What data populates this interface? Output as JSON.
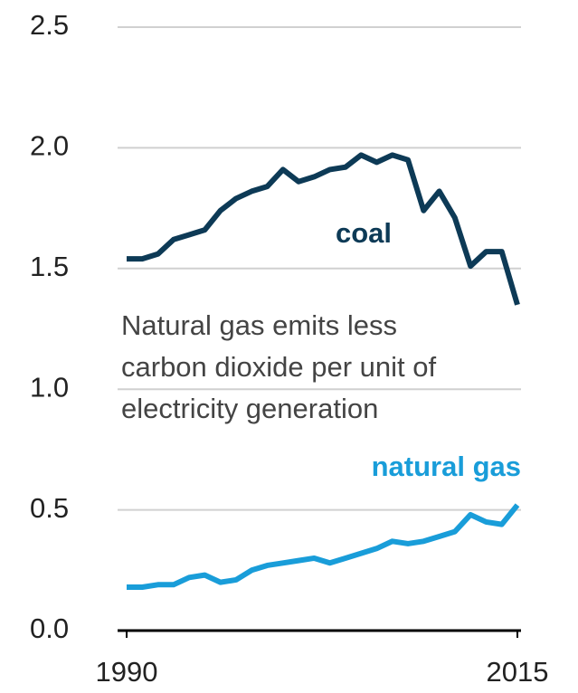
{
  "chart_data": {
    "type": "line",
    "x": [
      1990,
      1991,
      1992,
      1993,
      1994,
      1995,
      1996,
      1997,
      1998,
      1999,
      2000,
      2001,
      2002,
      2003,
      2004,
      2005,
      2006,
      2007,
      2008,
      2009,
      2010,
      2011,
      2012,
      2013,
      2014,
      2015
    ],
    "series": [
      {
        "name": "coal",
        "color": "#0d3a56",
        "values": [
          1.54,
          1.54,
          1.56,
          1.62,
          1.64,
          1.66,
          1.74,
          1.79,
          1.82,
          1.84,
          1.91,
          1.86,
          1.88,
          1.91,
          1.92,
          1.97,
          1.94,
          1.97,
          1.95,
          1.74,
          1.82,
          1.71,
          1.51,
          1.57,
          1.57,
          1.35
        ]
      },
      {
        "name": "natural gas",
        "color": "#199dd9",
        "values": [
          0.18,
          0.18,
          0.19,
          0.19,
          0.22,
          0.23,
          0.2,
          0.21,
          0.25,
          0.27,
          0.28,
          0.29,
          0.3,
          0.28,
          0.3,
          0.32,
          0.34,
          0.37,
          0.36,
          0.37,
          0.39,
          0.41,
          0.48,
          0.45,
          0.44,
          0.52
        ]
      }
    ],
    "annotation": [
      "Natural gas emits less",
      "carbon dioxide per unit of",
      "electricity generation"
    ],
    "xlim": [
      1990,
      2015
    ],
    "xticks": [
      1990,
      2015
    ],
    "ylim": [
      0,
      2.5
    ],
    "yticks": [
      {
        "value": 0,
        "label": "0.0"
      },
      0.5,
      {
        "value": 1,
        "label": "1.0"
      },
      1.5,
      {
        "value": 2,
        "label": "2.0"
      },
      2.5
    ],
    "grid": true
  }
}
